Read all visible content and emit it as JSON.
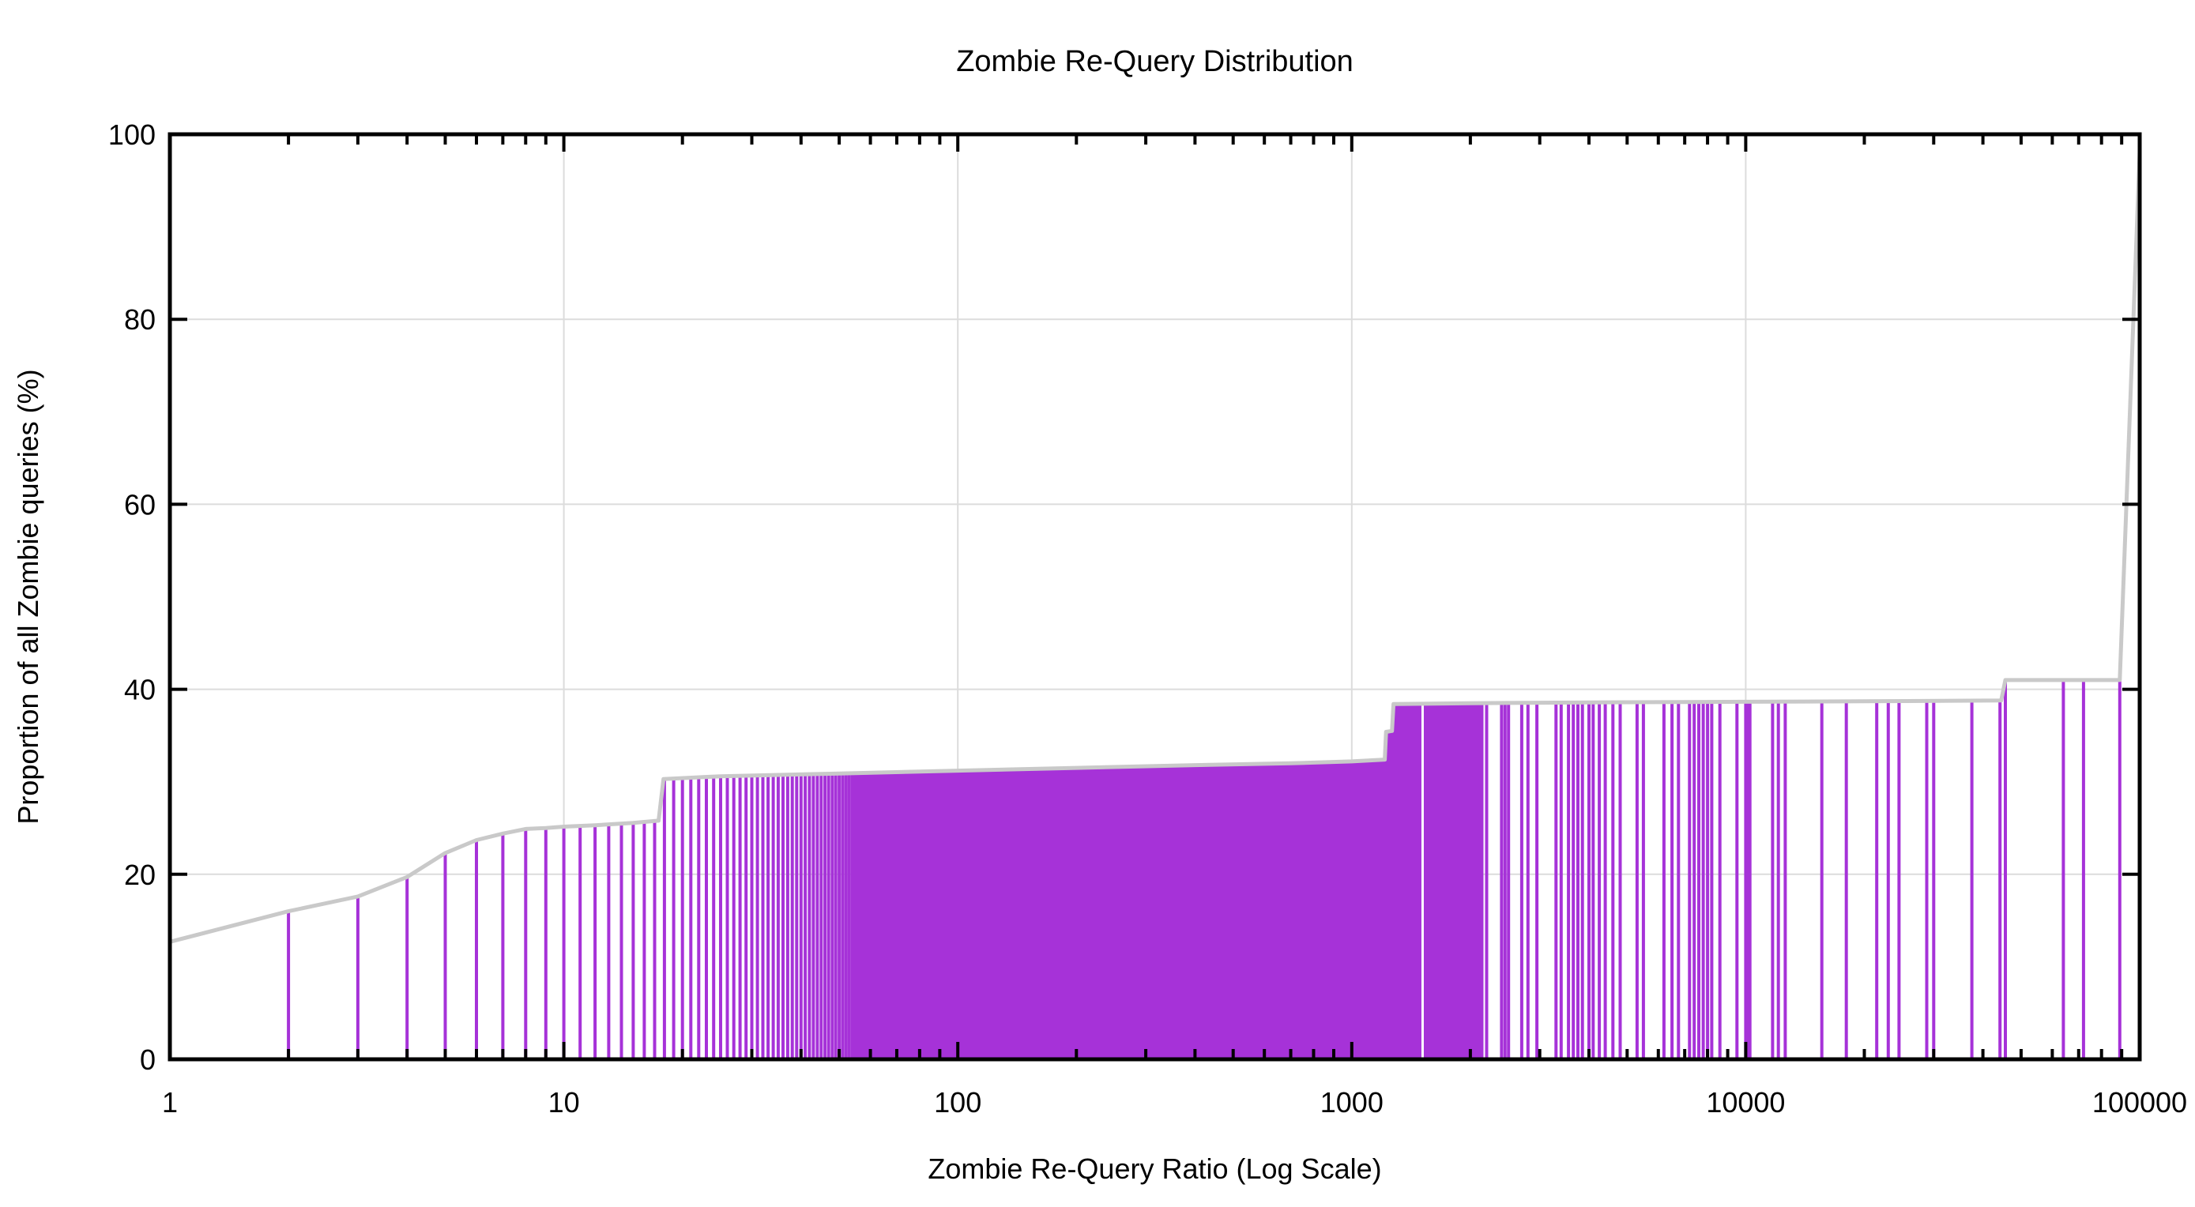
{
  "title": "Zombie Re-Query Distribution",
  "chart_data": {
    "type": "line",
    "title": "Zombie Re-Query Distribution",
    "xlabel": "Zombie Re-Query Ratio (Log Scale)",
    "ylabel": "Proportion of all Zombie queries (%)",
    "x_scale": "log",
    "xlim": [
      1,
      100000
    ],
    "ylim": [
      0,
      100
    ],
    "x_ticks": [
      "1",
      "10",
      "100",
      "1000",
      "10000",
      "100000"
    ],
    "x_tick_values": [
      1,
      10,
      100,
      1000,
      10000,
      100000
    ],
    "y_ticks": [
      "0",
      "20",
      "40",
      "60",
      "80",
      "100"
    ],
    "y_tick_values": [
      0,
      20,
      40,
      60,
      80,
      100
    ],
    "grid": true,
    "legend": "none",
    "series": [
      {
        "name": "cumulative-proportion-line",
        "style": "line",
        "color": "#c9c9c9",
        "points": [
          [
            1,
            12.7
          ],
          [
            2,
            16.0
          ],
          [
            3,
            17.6
          ],
          [
            4,
            19.7
          ],
          [
            5,
            22.3
          ],
          [
            6,
            23.7
          ],
          [
            7,
            24.4
          ],
          [
            8,
            24.9
          ],
          [
            9,
            25.0
          ],
          [
            10,
            25.15
          ],
          [
            12,
            25.3
          ],
          [
            15,
            25.55
          ],
          [
            17.4,
            25.8
          ],
          [
            17.9,
            30.3
          ],
          [
            25,
            30.6
          ],
          [
            50,
            30.9
          ],
          [
            100,
            31.2
          ],
          [
            200,
            31.5
          ],
          [
            400,
            31.8
          ],
          [
            700,
            32.0
          ],
          [
            1000,
            32.2
          ],
          [
            1213,
            32.4
          ],
          [
            1222,
            35.4
          ],
          [
            1265,
            35.5
          ],
          [
            1276,
            38.4
          ],
          [
            2000,
            38.5
          ],
          [
            5000,
            38.6
          ],
          [
            10000,
            38.65
          ],
          [
            20000,
            38.7
          ],
          [
            44500,
            38.8
          ],
          [
            45600,
            41.0
          ],
          [
            89000,
            41.0
          ],
          [
            100000,
            98.0
          ]
        ]
      },
      {
        "name": "re-query-impulses",
        "style": "impulse",
        "color": "#a632d8",
        "heights_follow": "cumulative-proportion-line",
        "integer_impulse_range": [
          2,
          2140
        ],
        "gap_at": 1513,
        "discrete_impulses": [
          2200,
          2400,
          2450,
          2500,
          2700,
          2800,
          2950,
          3300,
          3400,
          3550,
          3650,
          3750,
          3850,
          4000,
          4100,
          4250,
          4400,
          4600,
          4800,
          5300,
          5500,
          6200,
          6500,
          6750,
          7200,
          7400,
          7600,
          7800,
          8000,
          8200,
          8600,
          9500,
          10000,
          10100,
          10250,
          11700,
          12100,
          12600,
          15600,
          18000,
          21500,
          23000,
          24500,
          28800,
          30000,
          37500,
          44200,
          45600,
          64000,
          72000,
          89000
        ]
      }
    ]
  },
  "colors": {
    "impulse": "#a632d8",
    "curve": "#c9c9c9",
    "grid": "#dcdcdc",
    "axis": "#000000",
    "background": "#ffffff",
    "text": "#000000"
  }
}
